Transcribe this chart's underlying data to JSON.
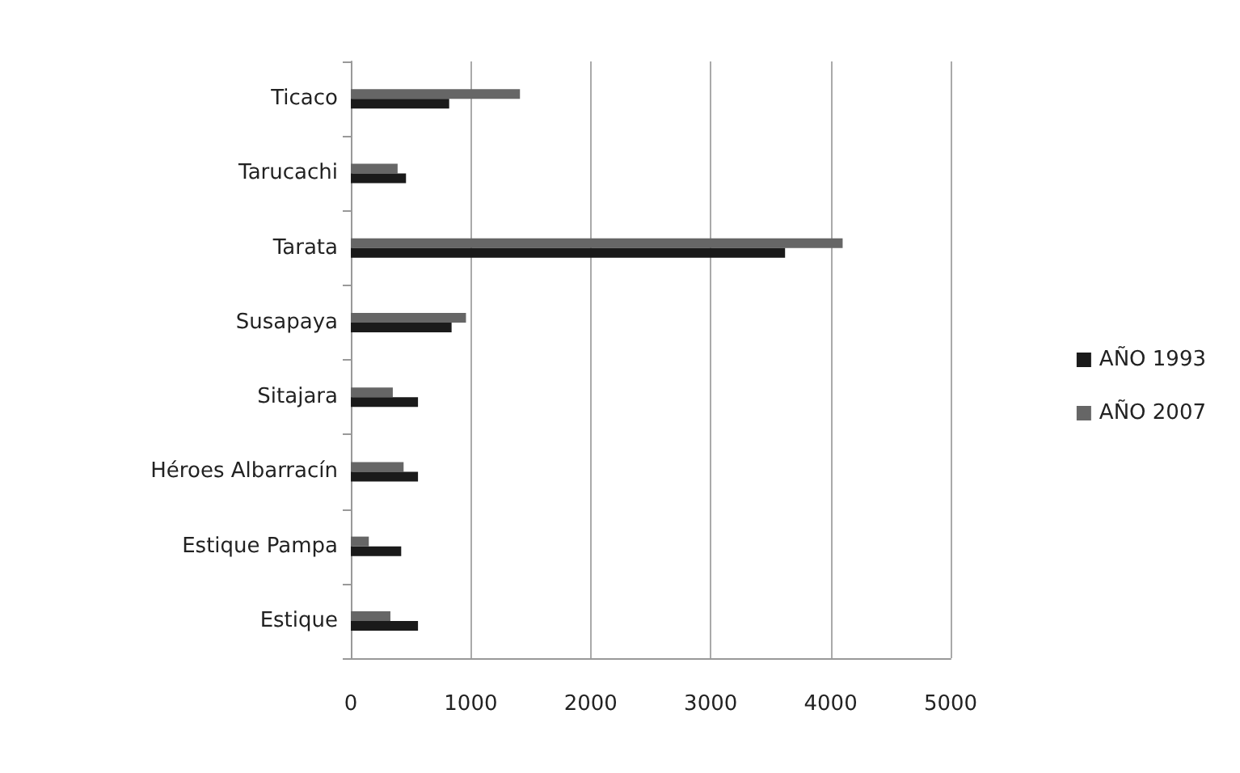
{
  "chart_data": {
    "type": "bar",
    "orientation": "horizontal",
    "categories": [
      "Ticaco",
      "Tarucachi",
      "Tarata",
      "Susapaya",
      "Sitajara",
      "Héroes Albarracín",
      "Estique Pampa",
      "Estique"
    ],
    "series": [
      {
        "name": "AÑO 1993",
        "color": "#1a1a1a",
        "values": [
          820,
          460,
          3620,
          840,
          560,
          560,
          420,
          560
        ]
      },
      {
        "name": "AÑO 2007",
        "color": "#666666",
        "values": [
          1410,
          390,
          4100,
          960,
          350,
          440,
          150,
          330
        ]
      }
    ],
    "xlim": [
      0,
      5000
    ],
    "xticks": [
      0,
      1000,
      2000,
      3000,
      4000,
      5000
    ],
    "grid": "x",
    "legend": "right"
  }
}
